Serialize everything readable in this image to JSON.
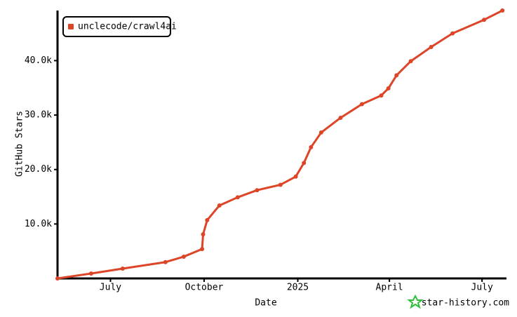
{
  "chart_data": {
    "type": "line",
    "x_label": "Date",
    "y_label": "GitHub Stars",
    "x": [
      0,
      33,
      64,
      106,
      124,
      142,
      143,
      147,
      159,
      177,
      196,
      219,
      234,
      242,
      249,
      259,
      278,
      299,
      318,
      325,
      333,
      347,
      367,
      388,
      419,
      437
    ],
    "series": [
      {
        "name": "unclecode/crawl4ai",
        "color": "#dd4528",
        "values": [
          0,
          900,
          1800,
          3000,
          4000,
          5400,
          8100,
          10700,
          13400,
          14900,
          16200,
          17200,
          18700,
          21200,
          24100,
          26800,
          29500,
          32000,
          33600,
          34900,
          37300,
          39900,
          42500,
          45000,
          47500,
          49200
        ]
      }
    ],
    "xlim": [
      0,
      441
    ],
    "xticks": [
      {
        "value": 52,
        "label": "July"
      },
      {
        "value": 144,
        "label": "October"
      },
      {
        "value": 236,
        "label": "2025"
      },
      {
        "value": 326,
        "label": "April"
      },
      {
        "value": 417,
        "label": "July"
      }
    ],
    "ylim": [
      0,
      49200
    ],
    "yticks": [
      {
        "value": 10000,
        "label": "10.0k"
      },
      {
        "value": 20000,
        "label": "20.0k"
      },
      {
        "value": 30000,
        "label": "30.0k"
      },
      {
        "value": 40000,
        "label": "40.0k"
      }
    ],
    "grid": false,
    "legend": "top-left"
  },
  "watermark": "star-history.com"
}
